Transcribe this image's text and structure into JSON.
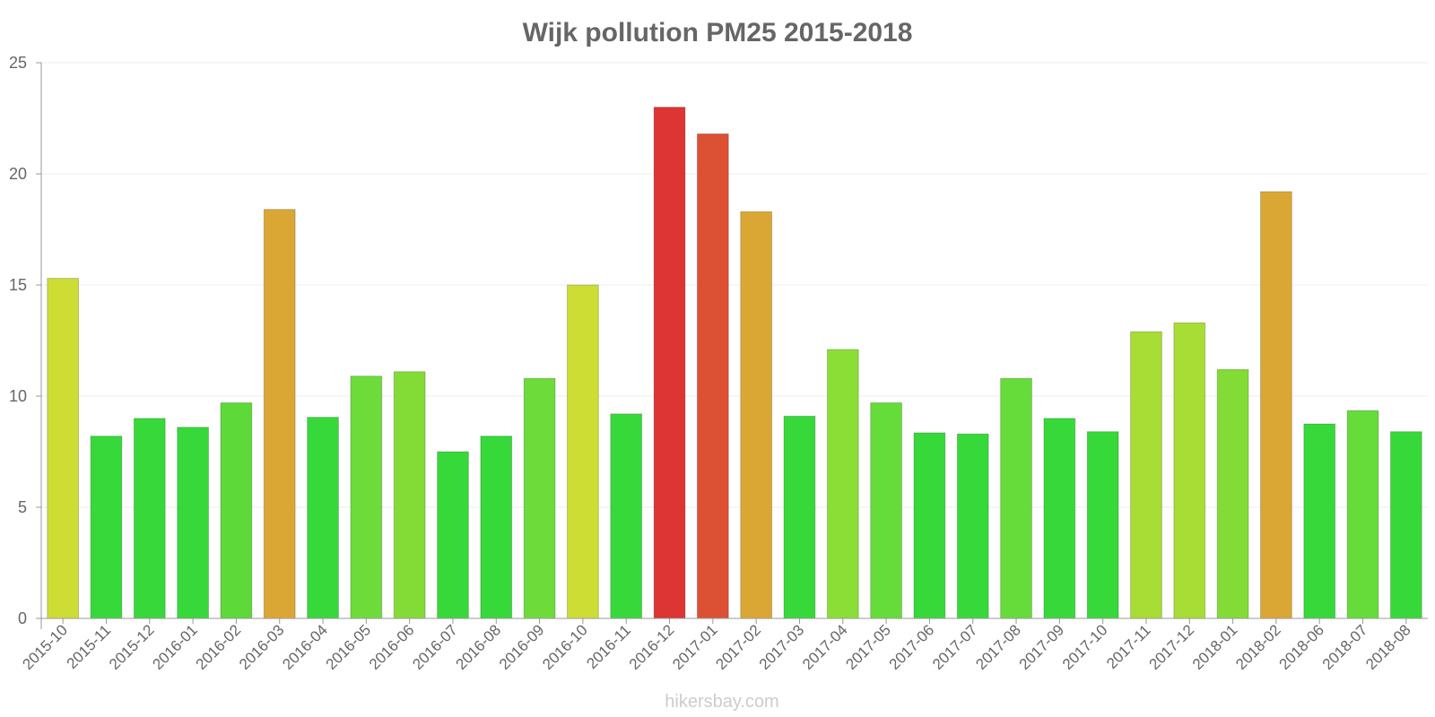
{
  "chart_data": {
    "type": "bar",
    "title": "Wijk pollution PM25 2015-2018",
    "xlabel": "",
    "ylabel": "",
    "ylim": [
      0,
      25
    ],
    "yticks": [
      "0",
      "5",
      "10",
      "15",
      "20",
      "25"
    ],
    "grid": true,
    "categories": [
      "2015-10",
      "2015-11",
      "2015-12",
      "2016-01",
      "2016-02",
      "2016-03",
      "2016-04",
      "2016-05",
      "2016-06",
      "2016-07",
      "2016-08",
      "2016-09",
      "2016-10",
      "2016-11",
      "2016-12",
      "2017-01",
      "2017-02",
      "2017-03",
      "2017-04",
      "2017-05",
      "2017-06",
      "2017-07",
      "2017-08",
      "2017-09",
      "2017-10",
      "2017-11",
      "2017-12",
      "2018-01",
      "2018-02",
      "2018-06",
      "2018-07",
      "2018-08"
    ],
    "values": [
      15.3,
      8.2,
      9.0,
      8.6,
      9.7,
      18.4,
      9.05,
      10.9,
      11.1,
      7.5,
      8.2,
      10.8,
      15.0,
      9.2,
      23.0,
      21.8,
      18.3,
      9.1,
      12.1,
      9.7,
      8.35,
      8.3,
      10.8,
      9.0,
      8.4,
      12.9,
      13.3,
      11.2,
      19.2,
      8.75,
      9.35,
      8.4
    ],
    "colors": [
      "#cddd34",
      "#37d93a",
      "#37d93a",
      "#37d93a",
      "#5dd93a",
      "#dba734",
      "#37d93a",
      "#6ddc3a",
      "#82dc35",
      "#37d93a",
      "#37d93a",
      "#6ddc3a",
      "#cddd34",
      "#37d93a",
      "#dc3534",
      "#dc5134",
      "#dba734",
      "#37d93a",
      "#8ade35",
      "#66dc3a",
      "#37d93a",
      "#37d93a",
      "#66dc3a",
      "#37d93a",
      "#37d93a",
      "#a7dd34",
      "#a7dd34",
      "#82dc35",
      "#dba734",
      "#37d93a",
      "#66dc3a",
      "#37d93a"
    ]
  },
  "watermark": "hikersbay.com"
}
